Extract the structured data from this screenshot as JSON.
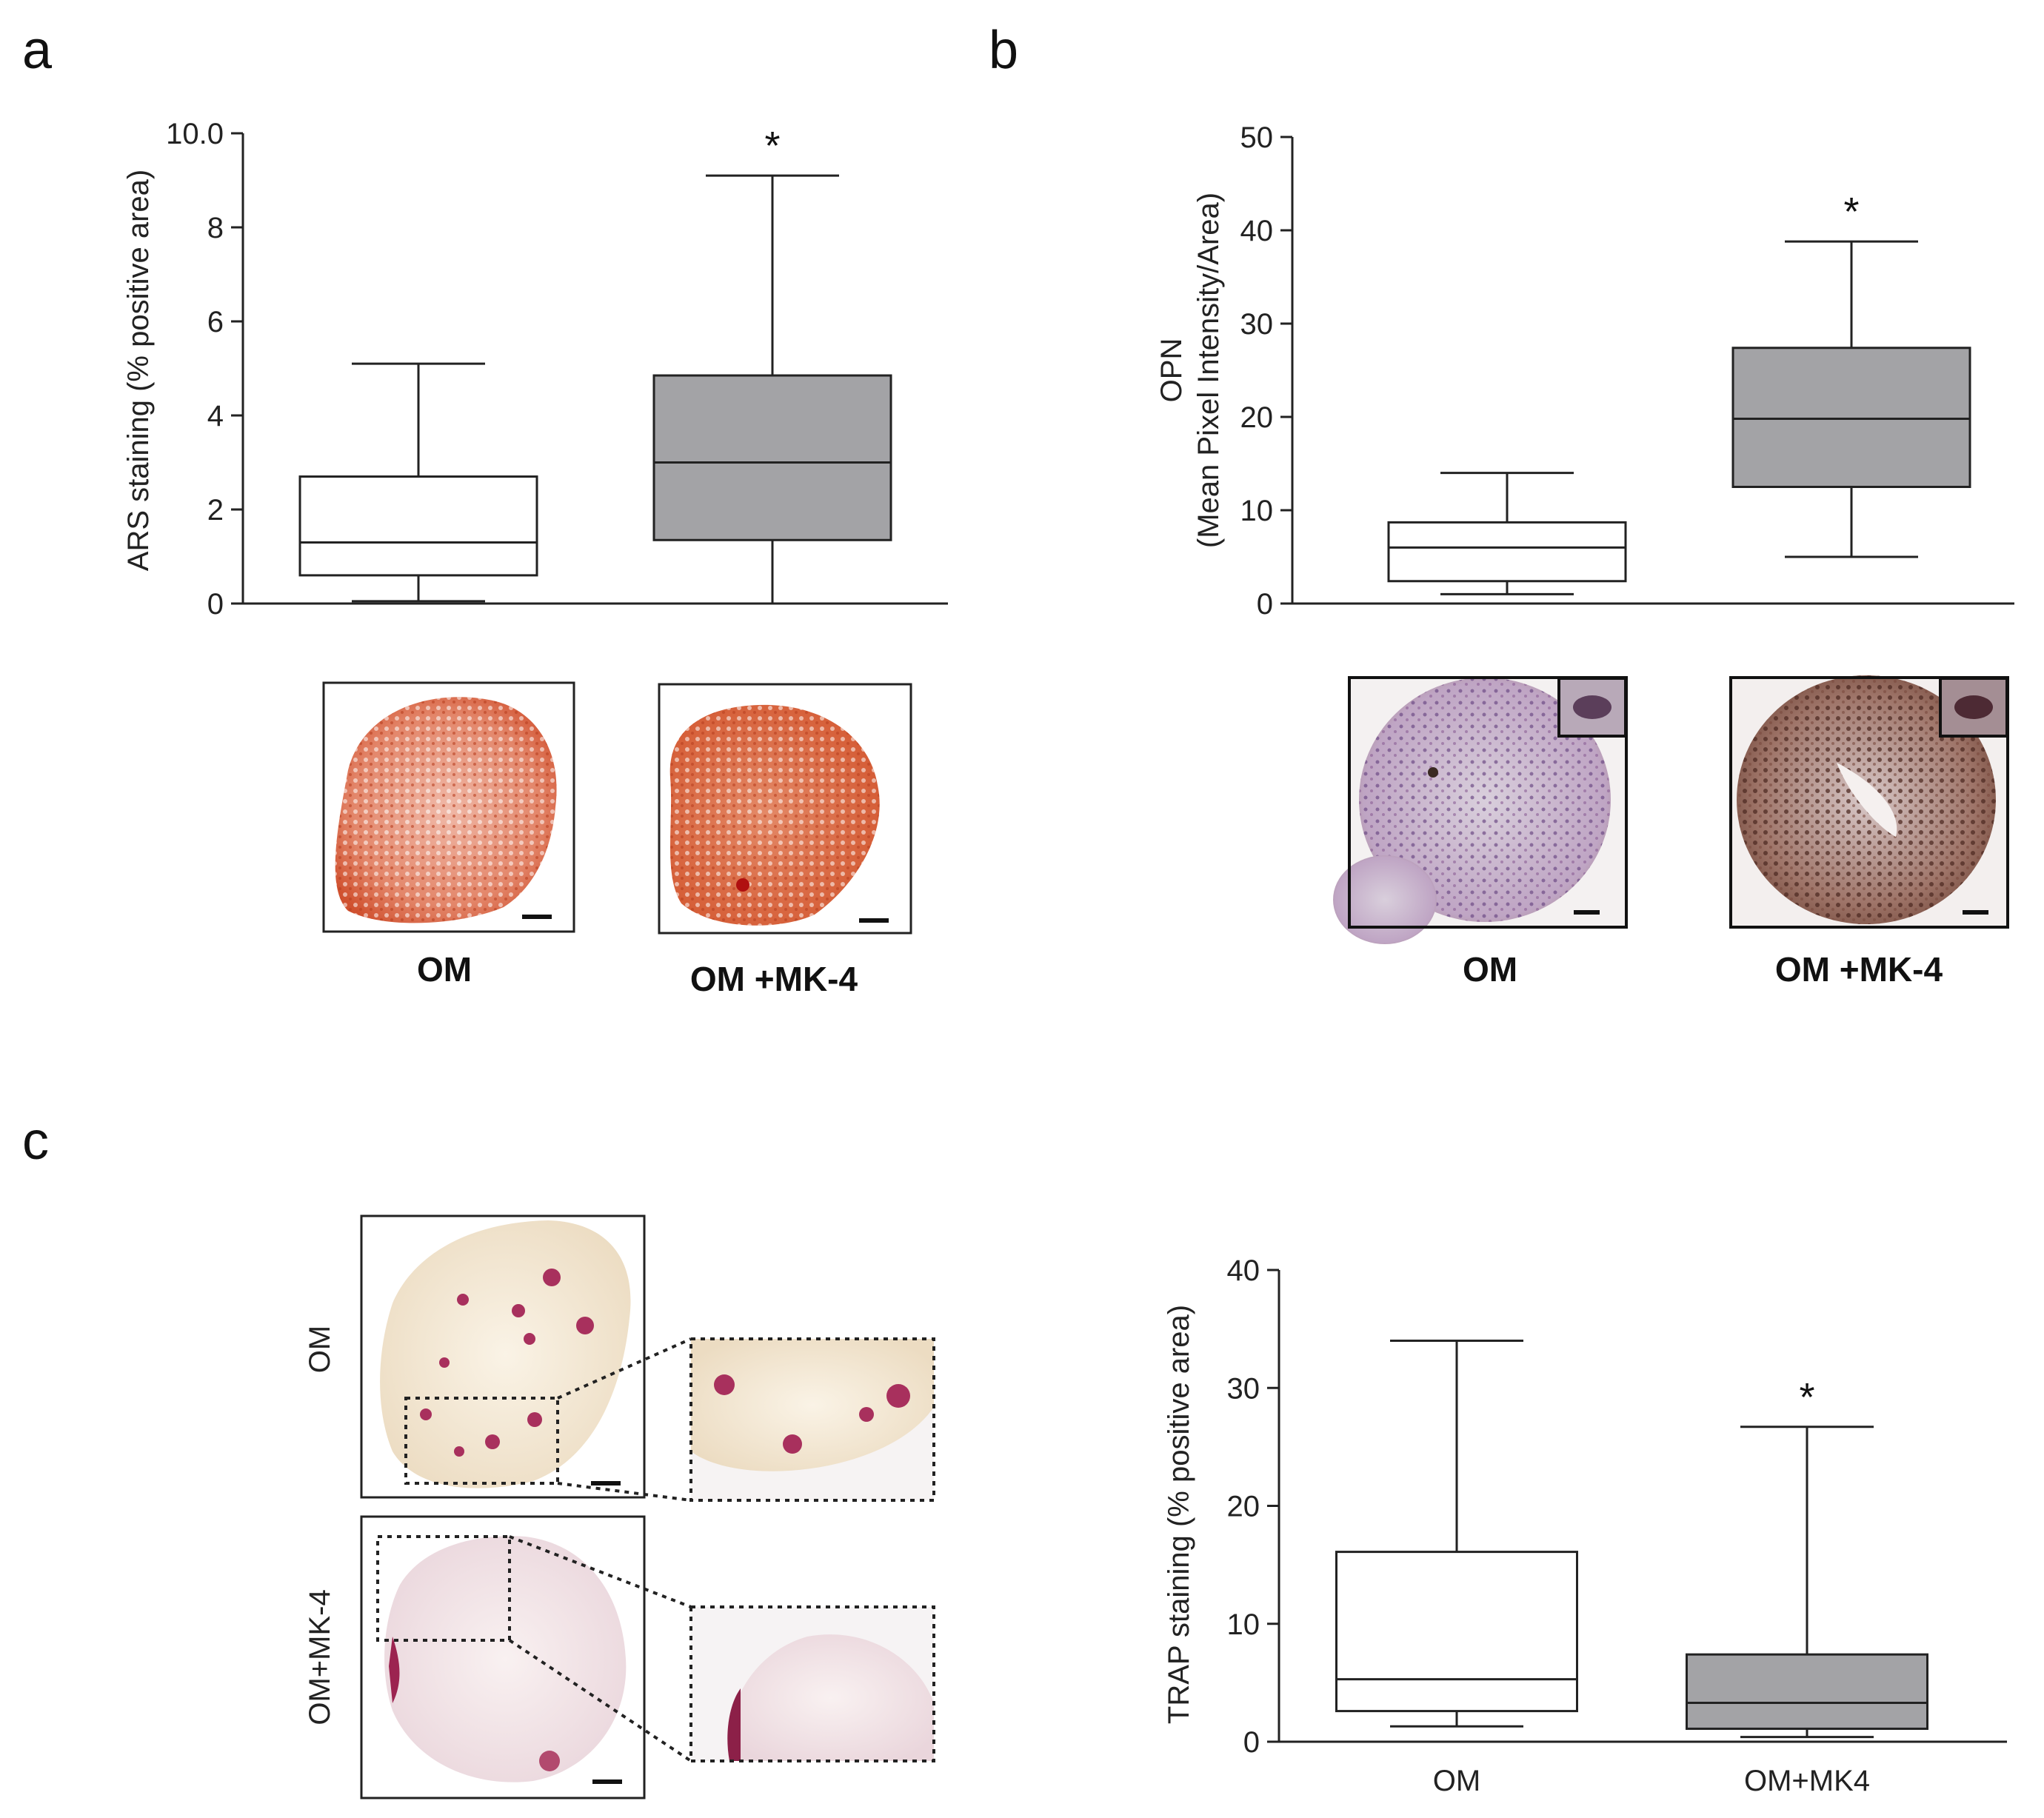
{
  "panels": {
    "a": "a",
    "b": "b",
    "c": "c"
  },
  "colors": {
    "white_box": "#ffffff",
    "gray_box": "#a3a3a6",
    "axis": "#222222"
  },
  "chart_data": [
    {
      "id": "a",
      "type": "box",
      "ylabel": "ARS staining (% positive area)",
      "ylim": [
        0,
        10
      ],
      "yticks": [
        "0",
        "2",
        "4",
        "6",
        "8",
        "10.0"
      ],
      "categories": [
        "OM",
        "OM +MK-4"
      ],
      "boxes": [
        {
          "name": "OM",
          "min": 0.05,
          "q1": 0.6,
          "median": 1.3,
          "q3": 2.7,
          "max": 5.1,
          "fill": "#ffffff",
          "marker": ""
        },
        {
          "name": "OM +MK-4",
          "min": 0,
          "q1": 1.35,
          "median": 3.0,
          "q3": 4.85,
          "max": 9.1,
          "fill": "#a3a3a6",
          "marker": "*"
        }
      ]
    },
    {
      "id": "b",
      "type": "box",
      "ylabel_line1": "OPN",
      "ylabel_line2": "(Mean Pixel Intensity/Area)",
      "ylim": [
        0,
        50
      ],
      "yticks": [
        "0",
        "10",
        "20",
        "30",
        "40",
        "50"
      ],
      "categories": [
        "OM",
        "OM +MK-4"
      ],
      "boxes": [
        {
          "name": "OM",
          "min": 1.0,
          "q1": 2.4,
          "median": 6.0,
          "q3": 8.7,
          "max": 14.0,
          "fill": "#ffffff",
          "marker": ""
        },
        {
          "name": "OM +MK-4",
          "min": 5.0,
          "q1": 12.5,
          "median": 19.8,
          "q3": 27.4,
          "max": 38.8,
          "fill": "#a3a3a6",
          "marker": "*"
        }
      ]
    },
    {
      "id": "c",
      "type": "box",
      "ylabel": "TRAP staining (% positive area)",
      "ylim": [
        0,
        40
      ],
      "yticks": [
        "0",
        "10",
        "20",
        "30",
        "40"
      ],
      "categories": [
        "OM",
        "OM+MK4"
      ],
      "boxes": [
        {
          "name": "OM",
          "min": 1.3,
          "q1": 2.6,
          "median": 5.3,
          "q3": 16.1,
          "max": 34.0,
          "fill": "#ffffff",
          "marker": ""
        },
        {
          "name": "OM+MK4",
          "min": 0.4,
          "q1": 1.1,
          "median": 3.3,
          "q3": 7.4,
          "max": 26.7,
          "fill": "#a3a3a6",
          "marker": "*"
        }
      ]
    }
  ],
  "micrographs": {
    "a": {
      "labels": [
        "OM",
        "OM +MK-4"
      ]
    },
    "b": {
      "labels": [
        "OM",
        "OM +MK-4"
      ]
    },
    "c": {
      "row_labels": [
        "OM",
        "OM+MK-4"
      ]
    }
  }
}
